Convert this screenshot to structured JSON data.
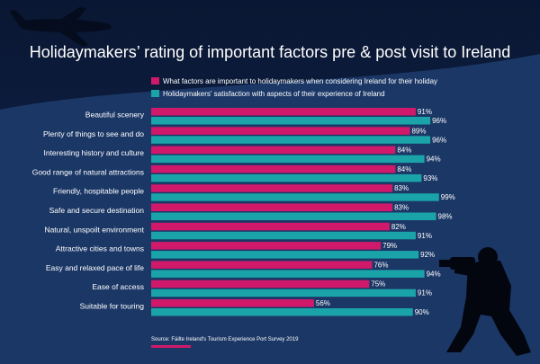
{
  "chart_data": {
    "type": "bar",
    "orientation": "horizontal",
    "title": "Holidaymakers’ rating of important factors pre & post visit to Ireland",
    "categories": [
      "Beautiful scenery",
      "Plenty of things to see and do",
      "Interesting history and culture",
      "Good range of natural attractions",
      "Friendly, hospitable people",
      "Safe and secure destination",
      "Natural, unspoilt environment",
      "Attractive cities and towns",
      "Easy and relaxed pace of life",
      "Ease of access",
      "Suitable for touring"
    ],
    "series": [
      {
        "name": "What factors are important to holidaymakers when considering Ireland for their holiday",
        "color": "#d1196b",
        "values": [
          91,
          89,
          84,
          84,
          83,
          83,
          82,
          79,
          76,
          75,
          56
        ]
      },
      {
        "name": "Holidaymakers' satisfaction with aspects of their experience of Ireland",
        "color": "#1aa3a8",
        "values": [
          96,
          96,
          94,
          93,
          99,
          98,
          91,
          92,
          94,
          91,
          90
        ]
      }
    ],
    "value_suffix": "%",
    "xlim": [
      0,
      100
    ],
    "legend_position": "top",
    "grid": false,
    "source": "Source: Fáilte Ireland's Tourism Experience Port Survey 2019"
  },
  "colors": {
    "background": "#0b1a3a",
    "hill": "#1b3766",
    "text": "#ffffff",
    "accent": "#d1196b"
  },
  "decorations": {
    "airplane": "airplane-silhouette",
    "photographer": "photographer-silhouette"
  }
}
